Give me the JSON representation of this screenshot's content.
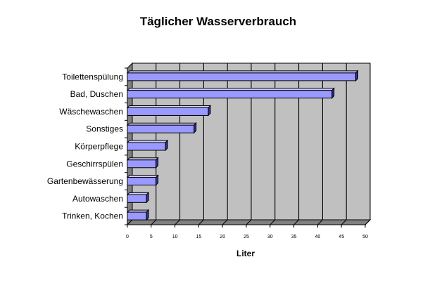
{
  "chart_data": {
    "type": "bar",
    "orientation": "horizontal",
    "three_d": true,
    "title": "Täglicher Wasserverbrauch",
    "xlabel": "Liter",
    "ylabel": "",
    "categories": [
      "Toilettenspülung",
      "Bad, Duschen",
      "Wäschewaschen",
      "Sonstiges",
      "Körperpflege",
      "Geschirrspülen",
      "Gartenbewässerung",
      "Autowaschen",
      "Trinken, Kochen"
    ],
    "values": [
      48,
      43,
      17,
      14,
      8,
      6,
      6,
      4,
      4
    ],
    "xlim": [
      0,
      50
    ],
    "ticks": [
      "0",
      "5",
      "10",
      "15",
      "20",
      "25",
      "30",
      "35",
      "40",
      "45",
      "50"
    ],
    "grid": true,
    "legend": "none",
    "bar_color": "#9999ff",
    "wall_color": "#c0c0c0",
    "floor_color": "#808080"
  }
}
